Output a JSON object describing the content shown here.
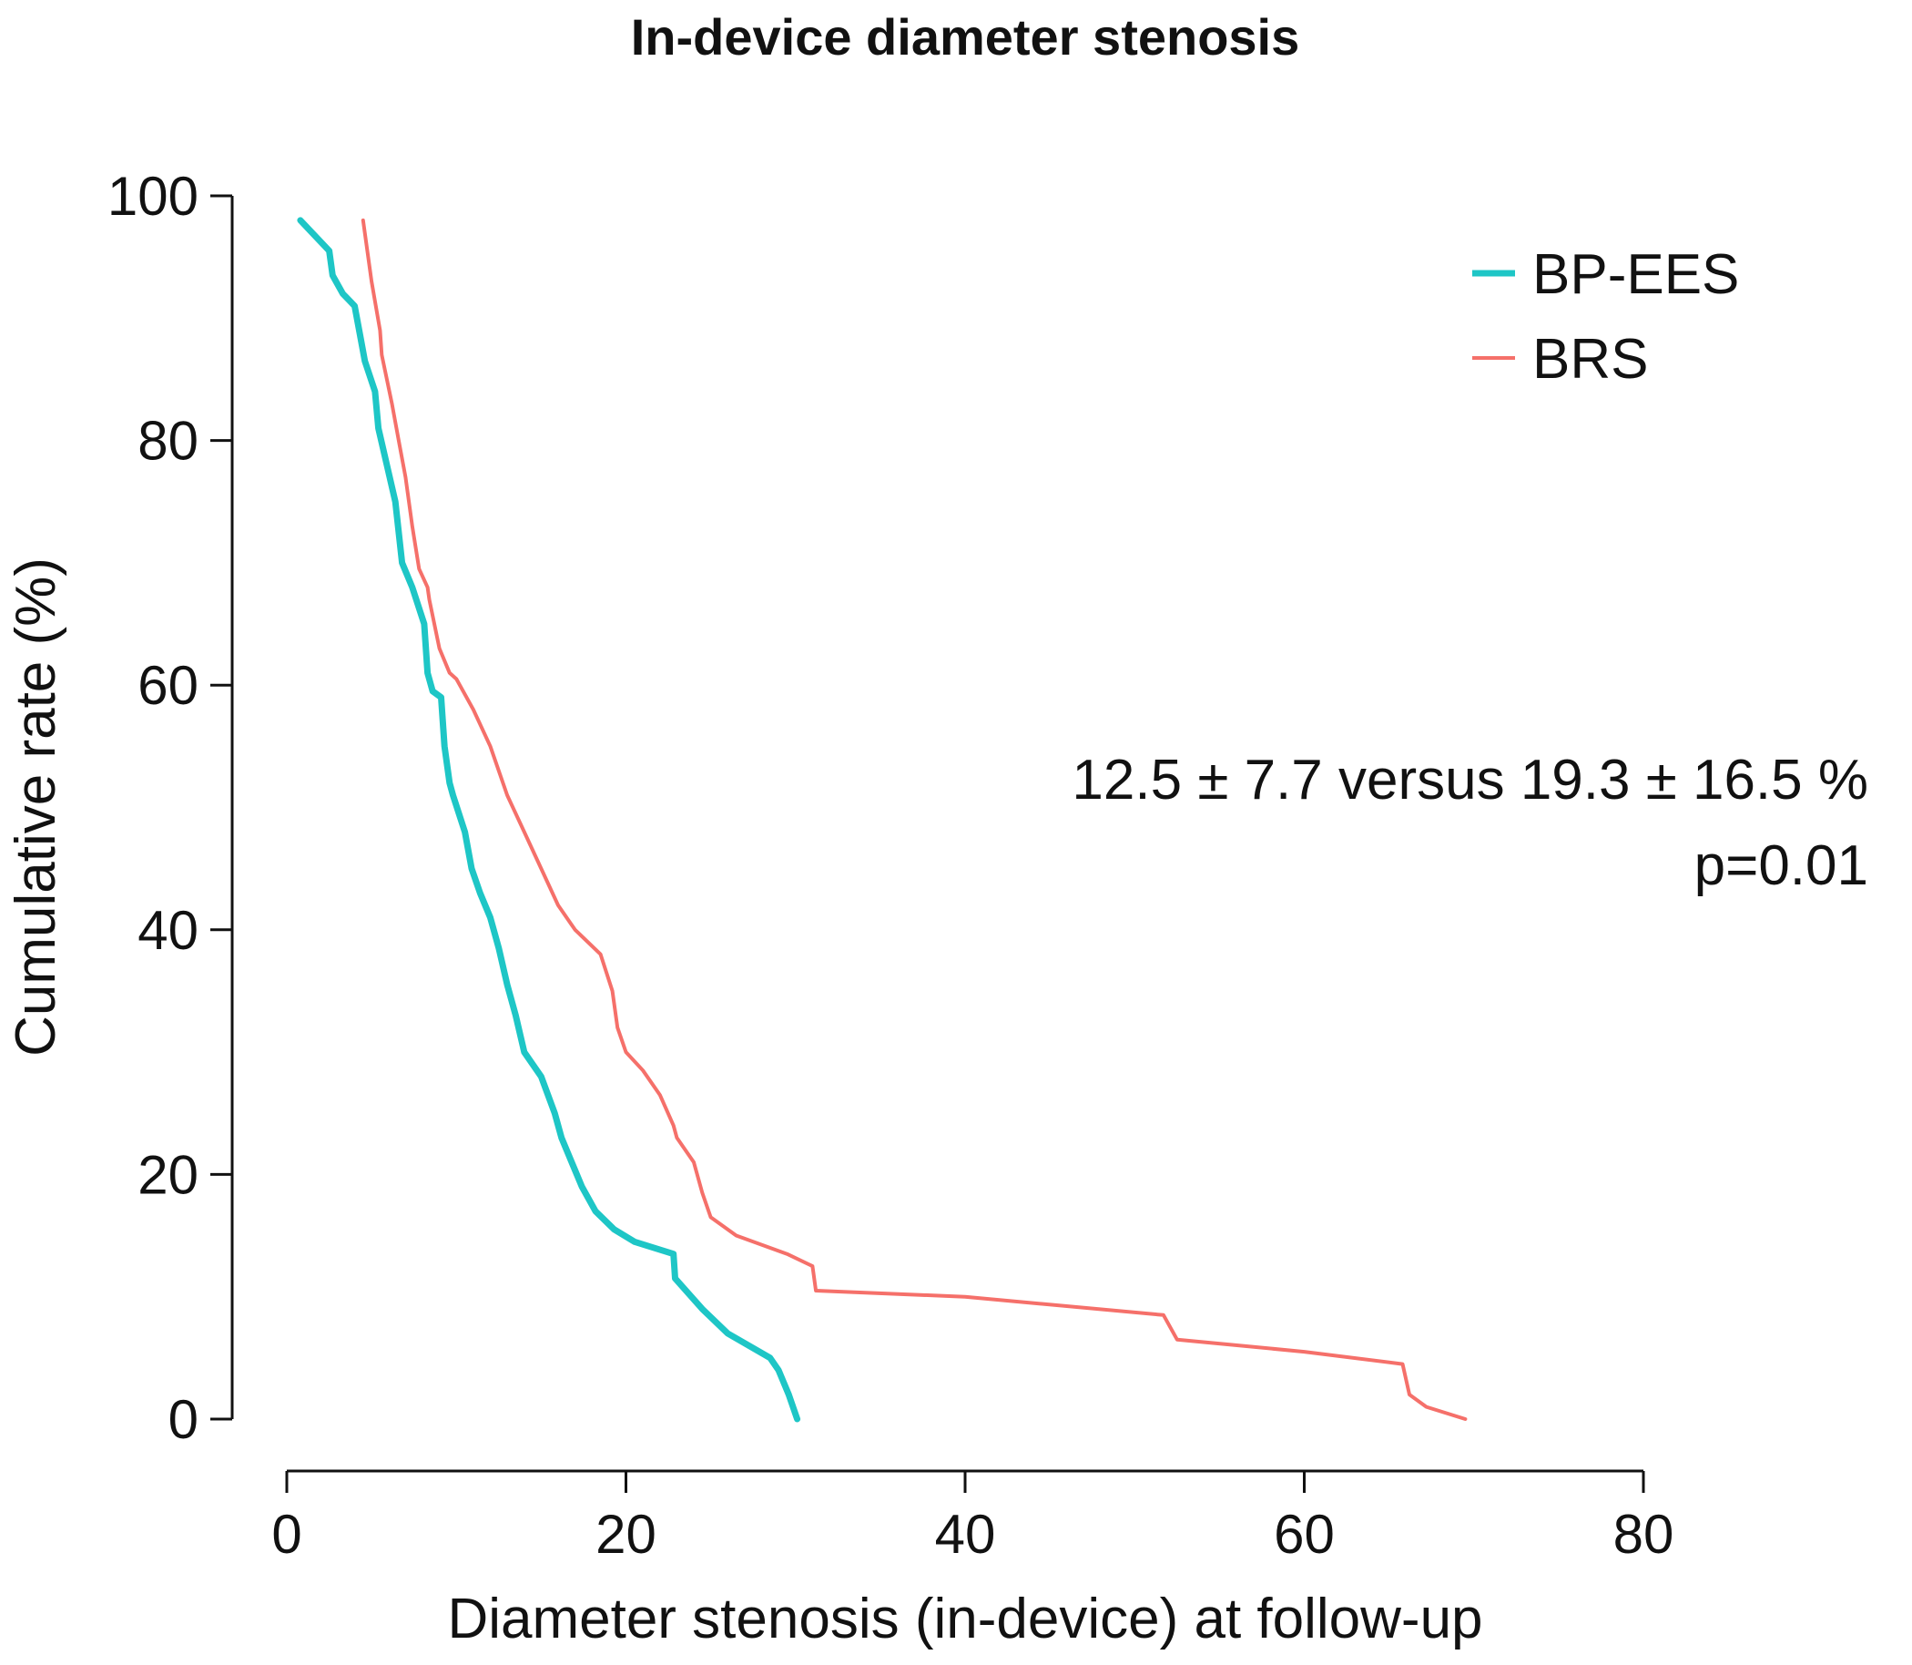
{
  "chart_data": {
    "type": "line",
    "title": "In-device diameter stenosis",
    "xlabel": "Diameter stenosis (in-device) at follow-up",
    "ylabel": "Cumulative rate (%)",
    "xlim": [
      0,
      80
    ],
    "ylim": [
      0,
      100
    ],
    "xticks": [
      0,
      20,
      40,
      60,
      80
    ],
    "yticks": [
      0,
      20,
      40,
      60,
      80,
      100
    ],
    "grid": false,
    "legend_position": "top-right",
    "annotations": [
      "12.5 ± 7.7 versus 19.3 ± 16.5  %",
      "p=0.01"
    ],
    "series": [
      {
        "name": "BP-EES",
        "color": "#1ec6c6",
        "x": [
          0.8,
          2.5,
          2.7,
          3.3,
          4.0,
          4.4,
          4.6,
          5.2,
          5.4,
          5.9,
          6.4,
          6.8,
          7.4,
          8.1,
          8.3,
          8.6,
          9.1,
          9.3,
          9.6,
          9.8,
          10.5,
          10.9,
          11.4,
          12.0,
          12.5,
          13.0,
          13.5,
          14.0,
          15.0,
          15.8,
          16.2,
          16.8,
          17.4,
          18.2,
          19.3,
          20.5,
          22.8,
          22.9,
          24.5,
          26.0,
          28.5,
          29.0,
          29.6,
          30.1
        ],
        "y": [
          98,
          95.5,
          93.5,
          92,
          91,
          88,
          86.5,
          84,
          81,
          78,
          75,
          70,
          68,
          65,
          61,
          59.5,
          59,
          55,
          52,
          51,
          48,
          45,
          43,
          41,
          38.5,
          35.5,
          33,
          30,
          28,
          25,
          23,
          21,
          19,
          17,
          15.5,
          14.5,
          13.5,
          11.5,
          9,
          7,
          5,
          4,
          2,
          0
        ]
      },
      {
        "name": "BRS",
        "color": "#f5706a",
        "x": [
          4.5,
          5.0,
          5.5,
          5.6,
          6.2,
          6.6,
          7.0,
          7.4,
          7.8,
          8.3,
          8.4,
          9.0,
          9.6,
          10.0,
          10.2,
          11.0,
          12.0,
          13.0,
          14.0,
          15.0,
          16.0,
          17.0,
          18.5,
          19.2,
          19.5,
          20.0,
          21.0,
          22.0,
          22.8,
          23.0,
          24.0,
          24.5,
          25.0,
          26.5,
          28.5,
          29.5,
          31.0,
          31.2,
          40.0,
          51.7,
          52.5,
          60.0,
          65.8,
          66.2,
          67.2,
          69.5
        ],
        "y": [
          98,
          93,
          89,
          87,
          83,
          80,
          77,
          73,
          69.5,
          68,
          67,
          63,
          61,
          60.5,
          60,
          58,
          55,
          51,
          48,
          45,
          42,
          40,
          38,
          35,
          32,
          30,
          28.5,
          26.5,
          24,
          23,
          21,
          18.5,
          16.5,
          15,
          14,
          13.5,
          12.5,
          10.5,
          10,
          8.5,
          6.5,
          5.5,
          4.5,
          2,
          1,
          0
        ]
      }
    ]
  }
}
